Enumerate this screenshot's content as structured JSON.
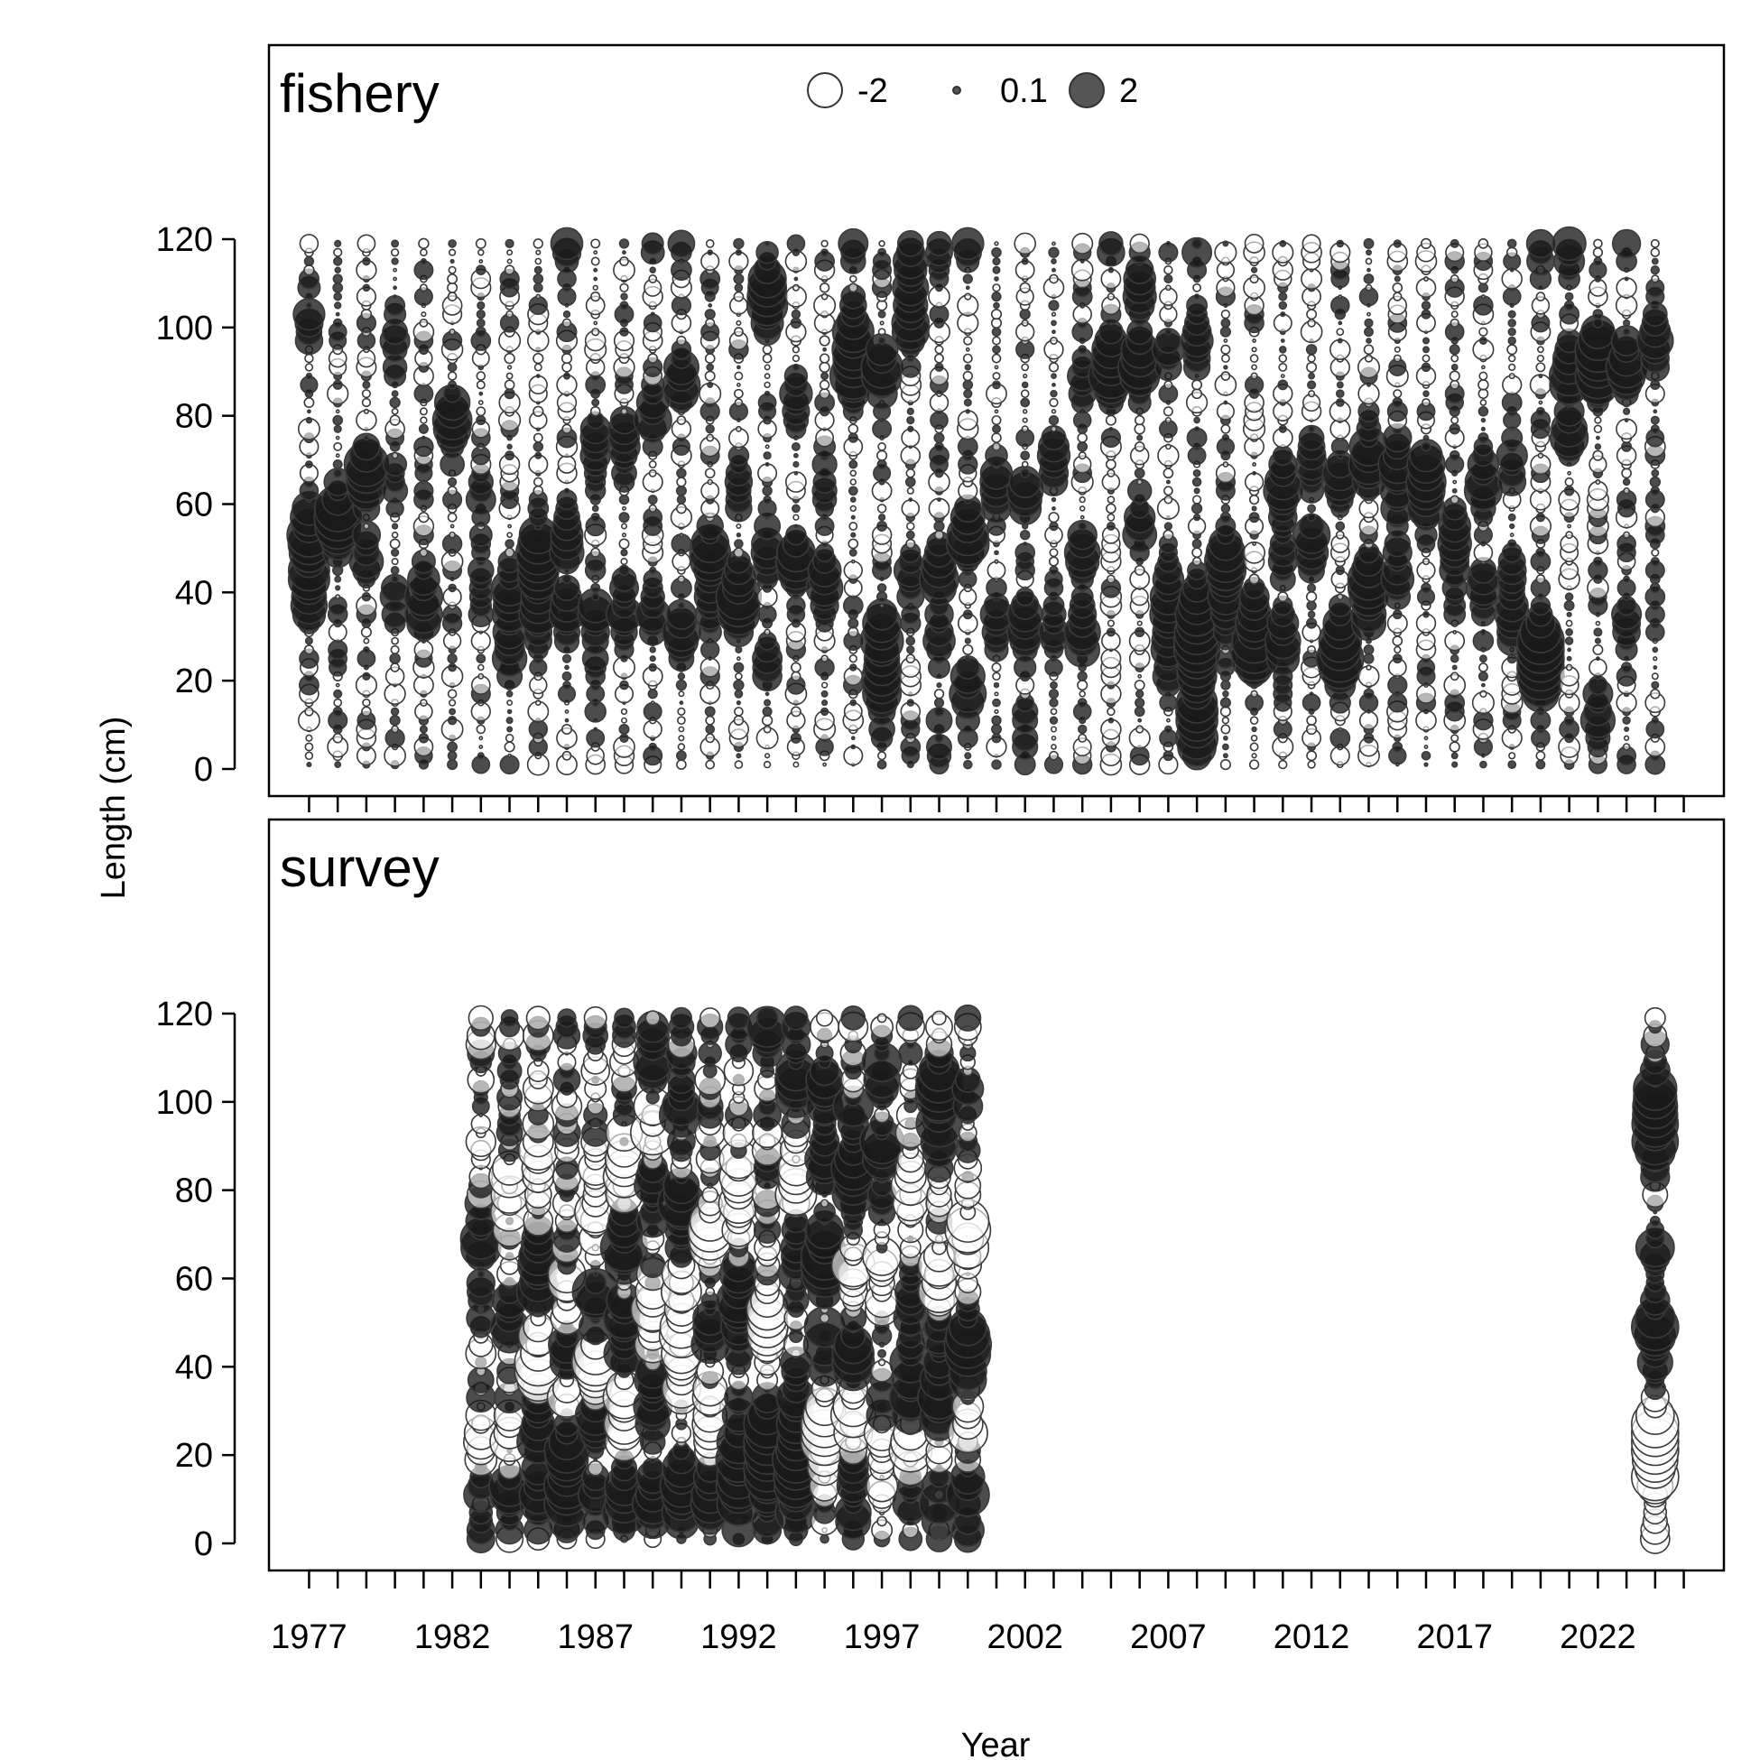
{
  "chart_data": {
    "type": "scatter",
    "subtype": "bubble (Pearson residuals)",
    "xlabel": "Year",
    "ylabel": "Length (cm)",
    "x_ticks": [
      "1977",
      "1982",
      "1987",
      "1992",
      "1997",
      "2002",
      "2007",
      "2012",
      "2017",
      "2022"
    ],
    "x_tick_values": [
      1977,
      1982,
      1987,
      1992,
      1997,
      2002,
      2007,
      2012,
      2017,
      2022
    ],
    "x_minor_ticks_every": 1,
    "xlim": [
      1975.6,
      2026.4
    ],
    "y_ticks": [
      "0",
      "20",
      "40",
      "60",
      "80",
      "100",
      "120"
    ],
    "y_tick_values": [
      0,
      20,
      40,
      60,
      80,
      100,
      120
    ],
    "length_bins": {
      "start": 1,
      "end": 119,
      "step": 2
    },
    "legend": {
      "placement": "top-center",
      "entries": [
        {
          "label": "-2",
          "value": -2,
          "style": "open"
        },
        {
          "label": "0.1",
          "value": 0.1,
          "style": "filled"
        },
        {
          "label": "2",
          "value": 2,
          "style": "filled"
        }
      ]
    },
    "colors": {
      "positive_fill": "#1a1a1a",
      "negative_fill": "#ffffff",
      "outline": "#3a3a3a"
    },
    "panels": [
      {
        "name": "fishery",
        "years": [
          1977,
          1978,
          1979,
          1980,
          1981,
          1982,
          1983,
          1984,
          1985,
          1986,
          1987,
          1988,
          1989,
          1990,
          1991,
          1992,
          1993,
          1994,
          1995,
          1996,
          1997,
          1998,
          1999,
          2000,
          2001,
          2002,
          2003,
          2004,
          2005,
          2006,
          2007,
          2008,
          2009,
          2010,
          2011,
          2012,
          2013,
          2014,
          2015,
          2016,
          2017,
          2018,
          2019,
          2020,
          2021,
          2022,
          2023,
          2024
        ],
        "peaks": [
          [
            [
              50,
              1.4
            ],
            [
              40,
              1.5
            ],
            [
              56,
              0.9
            ],
            [
              101,
              0.8
            ]
          ],
          [
            [
              58,
              1.6
            ],
            [
              54,
              1.0
            ]
          ],
          [
            [
              65,
              1.3
            ],
            [
              68,
              1.1
            ],
            [
              48,
              1.0
            ]
          ],
          [
            [
              40,
              0.7
            ],
            [
              97,
              0.6
            ],
            [
              64,
              0.6
            ]
          ],
          [
            [
              36,
              1.1
            ],
            [
              44,
              0.6
            ]
          ],
          [
            [
              80,
              1.0
            ],
            [
              76,
              0.8
            ]
          ],
          [
            [
              41,
              0.8
            ],
            [
              60,
              0.6
            ]
          ],
          [
            [
              28,
              1.4
            ],
            [
              40,
              1.2
            ]
          ],
          [
            [
              46,
              1.5
            ],
            [
              35,
              1.2
            ],
            [
              50,
              1.0
            ]
          ],
          [
            [
              52,
              1.2
            ],
            [
              35,
              1.0
            ],
            [
              118,
              0.9
            ]
          ],
          [
            [
              72,
              1.1
            ],
            [
              35,
              1.0
            ],
            [
              22,
              0.7
            ]
          ],
          [
            [
              74,
              1.2
            ],
            [
              36,
              1.1
            ]
          ],
          [
            [
              80,
              1.2
            ],
            [
              36,
              1.0
            ],
            [
              120,
              0.7
            ]
          ],
          [
            [
              88,
              1.4
            ],
            [
              30,
              1.3
            ],
            [
              120,
              0.5
            ]
          ],
          [
            [
              48,
              1.6
            ],
            [
              38,
              0.8
            ]
          ],
          [
            [
              38,
              2.0
            ],
            [
              64,
              0.7
            ]
          ],
          [
            [
              104,
              1.2
            ],
            [
              49,
              1.1
            ],
            [
              25,
              1.0
            ],
            [
              111,
              1.1
            ]
          ],
          [
            [
              46,
              1.6
            ],
            [
              85,
              0.8
            ]
          ],
          [
            [
              43,
              1.5
            ],
            [
              65,
              0.8
            ]
          ],
          [
            [
              90,
              2.1
            ],
            [
              100,
              1.4
            ],
            [
              120,
              0.6
            ]
          ],
          [
            [
              90,
              1.5
            ],
            [
              30,
              1.6
            ],
            [
              20,
              1.5
            ],
            [
              8,
              0.6
            ]
          ],
          [
            [
              100,
              1.4
            ],
            [
              112,
              1.3
            ],
            [
              44,
              1.0
            ]
          ],
          [
            [
              44,
              1.3
            ],
            [
              30,
              1.0
            ],
            [
              7,
              0.6
            ],
            [
              120,
              0.7
            ]
          ],
          [
            [
              52,
              1.8
            ],
            [
              18,
              1.2
            ],
            [
              120,
              0.7
            ]
          ],
          [
            [
              64,
              1.3
            ],
            [
              33,
              1.0
            ]
          ],
          [
            [
              62,
              1.3
            ],
            [
              32,
              1.4
            ],
            [
              8,
              0.6
            ]
          ],
          [
            [
              70,
              1.2
            ],
            [
              30,
              0.9
            ]
          ],
          [
            [
              49,
              1.2
            ],
            [
              30,
              1.3
            ],
            [
              90,
              0.8
            ]
          ],
          [
            [
              88,
              1.5
            ],
            [
              95,
              1.2
            ],
            [
              120,
              0.6
            ]
          ],
          [
            [
              92,
              1.7
            ],
            [
              55,
              1.2
            ],
            [
              108,
              1.0
            ]
          ],
          [
            [
              38,
              1.6
            ],
            [
              25,
              1.0
            ],
            [
              95,
              0.8
            ]
          ],
          [
            [
              26,
              2.0
            ],
            [
              36,
              1.7
            ],
            [
              9,
              1.9
            ],
            [
              96,
              1.2
            ],
            [
              18,
              1.0
            ],
            [
              120,
              0.7
            ]
          ],
          [
            [
              47,
              1.7
            ],
            [
              38,
              1.0
            ]
          ],
          [
            [
              27,
              2.0
            ],
            [
              36,
              0.8
            ]
          ],
          [
            [
              64,
              1.6
            ],
            [
              29,
              1.3
            ],
            [
              48,
              1.0
            ]
          ],
          [
            [
              52,
              1.3
            ],
            [
              70,
              1.0
            ]
          ],
          [
            [
              28,
              1.6
            ],
            [
              64,
              1.3
            ],
            [
              24,
              1.0
            ]
          ],
          [
            [
              70,
              1.6
            ],
            [
              43,
              1.3
            ],
            [
              36,
              1.0
            ],
            [
              120,
              0.6
            ]
          ],
          [
            [
              70,
              1.3
            ],
            [
              44,
              1.1
            ],
            [
              60,
              0.8
            ]
          ],
          [
            [
              66,
              1.5
            ],
            [
              60,
              0.9
            ]
          ],
          [
            [
              53,
              1.2
            ],
            [
              40,
              0.8
            ]
          ],
          [
            [
              64,
              1.3
            ],
            [
              40,
              1.0
            ]
          ],
          [
            [
              70,
              1.0
            ],
            [
              34,
              1.2
            ],
            [
              45,
              0.8
            ]
          ],
          [
            [
              28,
              2.1
            ],
            [
              21,
              1.9
            ],
            [
              120,
              1.1
            ]
          ],
          [
            [
              90,
              1.6
            ],
            [
              76,
              1.3
            ],
            [
              118,
              1.0
            ]
          ],
          [
            [
              90,
              1.6
            ],
            [
              12,
              1.1
            ],
            [
              95,
              1.2
            ]
          ],
          [
            [
              92,
              1.5
            ],
            [
              35,
              0.9
            ],
            [
              120,
              0.6
            ]
          ],
          [
            [
              96,
              1.2
            ],
            [
              40,
              0.7
            ]
          ]
        ]
      },
      {
        "name": "survey",
        "years": [
          1983,
          1984,
          1985,
          1986,
          1987,
          1988,
          1989,
          1990,
          1991,
          1992,
          1993,
          1994,
          1995,
          1996,
          1997,
          1998,
          1999,
          2000,
          2024
        ],
        "peaks": [
          [
            [
              35,
              1.7
            ],
            [
              68,
              1.3
            ],
            [
              50,
              1.1
            ],
            [
              15,
              1.1
            ],
            [
              40,
              -1.9
            ],
            [
              24,
              -1.7
            ],
            [
              90,
              -1.0
            ]
          ],
          [
            [
              47,
              1.5
            ],
            [
              33,
              1.3
            ],
            [
              12,
              1.2
            ],
            [
              25,
              -1.5
            ],
            [
              40,
              -1.2
            ],
            [
              80,
              -1.0
            ]
          ],
          [
            [
              28,
              1.9
            ],
            [
              60,
              1.8
            ],
            [
              10,
              1.2
            ],
            [
              40,
              -2.1
            ],
            [
              85,
              -1.1
            ]
          ],
          [
            [
              22,
              1.9
            ],
            [
              43,
              1.5
            ],
            [
              10,
              1.3
            ],
            [
              55,
              -1.3
            ],
            [
              30,
              -1.5
            ]
          ],
          [
            [
              55,
              1.6
            ],
            [
              28,
              1.4
            ],
            [
              10,
              1.1
            ],
            [
              40,
              -1.8
            ],
            [
              78,
              -1.2
            ]
          ],
          [
            [
              67,
              1.8
            ],
            [
              47,
              1.4
            ],
            [
              9,
              1.5
            ],
            [
              30,
              -1.5
            ],
            [
              85,
              -1.3
            ]
          ],
          [
            [
              80,
              1.2
            ],
            [
              35,
              1.4
            ],
            [
              110,
              1.0
            ],
            [
              12,
              1.3
            ],
            [
              50,
              -1.4
            ],
            [
              95,
              -1.3
            ]
          ],
          [
            [
              75,
              2.0
            ],
            [
              100,
              1.6
            ],
            [
              10,
              1.8
            ],
            [
              40,
              -1.6
            ],
            [
              55,
              -1.3
            ]
          ],
          [
            [
              48,
              1.4
            ],
            [
              10,
              1.7
            ],
            [
              70,
              -1.5
            ],
            [
              30,
              -1.2
            ]
          ],
          [
            [
              55,
              1.5
            ],
            [
              30,
              1.2
            ],
            [
              18,
              1.3
            ],
            [
              10,
              1.2
            ],
            [
              80,
              -1.4
            ]
          ],
          [
            [
              22,
              1.6
            ],
            [
              28,
              1.3
            ],
            [
              12,
              1.6
            ],
            [
              115,
              1.1
            ],
            [
              50,
              -1.3
            ]
          ],
          [
            [
              22,
              1.6
            ],
            [
              33,
              1.4
            ],
            [
              104,
              1.4
            ],
            [
              12,
              1.5
            ],
            [
              66,
              1.0
            ],
            [
              80,
              -1.3
            ]
          ],
          [
            [
              65,
              2.2
            ],
            [
              90,
              1.5
            ],
            [
              104,
              1.7
            ],
            [
              45,
              1.2
            ],
            [
              25,
              -1.7
            ]
          ],
          [
            [
              80,
              1.8
            ],
            [
              95,
              1.5
            ],
            [
              42,
              1.5
            ],
            [
              10,
              1.3
            ],
            [
              30,
              -1.4
            ],
            [
              60,
              -1.6
            ]
          ],
          [
            [
              88,
              1.6
            ],
            [
              108,
              1.4
            ],
            [
              30,
              1.4
            ],
            [
              60,
              -1.2
            ],
            [
              25,
              -1.5
            ]
          ],
          [
            [
              32,
              1.5
            ],
            [
              12,
              1.6
            ],
            [
              47,
              1.2
            ],
            [
              20,
              -1.8
            ],
            [
              80,
              -1.3
            ]
          ],
          [
            [
              102,
              1.9
            ],
            [
              30,
              1.7
            ],
            [
              46,
              1.4
            ],
            [
              93,
              1.0
            ],
            [
              10,
              1.0
            ],
            [
              60,
              -1.4
            ],
            [
              22,
              -1.3
            ]
          ],
          [
            [
              42,
              2.0
            ],
            [
              100,
              1.2
            ],
            [
              11,
              1.2
            ],
            [
              70,
              -1.5
            ],
            [
              30,
              -1.2
            ]
          ],
          [
            [
              48,
              2.0
            ],
            [
              100,
              1.6
            ],
            [
              90,
              1.5
            ],
            [
              66,
              1.3
            ],
            [
              25,
              -2.0
            ],
            [
              16,
              -1.5
            ]
          ]
        ]
      }
    ]
  },
  "panels_text": {
    "fishery": "fishery",
    "survey": "survey"
  }
}
